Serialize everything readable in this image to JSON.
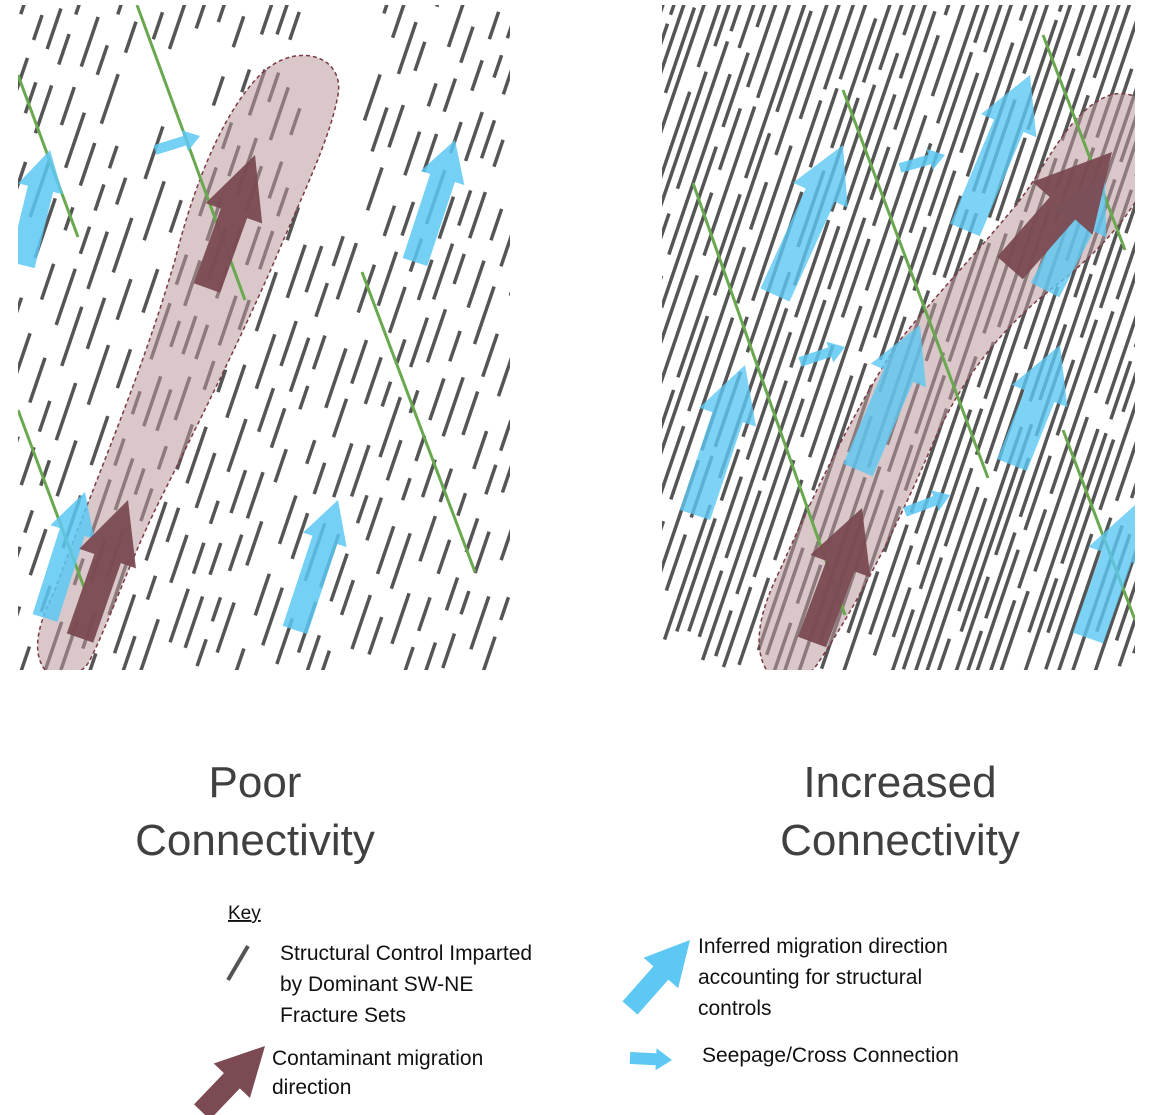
{
  "panels": [
    {
      "title_lines": [
        "Poor",
        "Connectivity"
      ]
    },
    {
      "title_lines": [
        "Increased",
        "Connectivity"
      ]
    }
  ],
  "key": {
    "title": "Key",
    "items": [
      {
        "label_lines": [
          "Structural Control Imparted",
          "by Dominant SW-NE",
          "Fracture Sets"
        ]
      },
      {
        "label_lines": [
          "Contaminant migration",
          "direction"
        ]
      },
      {
        "label_lines": [
          "Inferred migration direction",
          "accounting for structural",
          "controls"
        ]
      },
      {
        "label_lines": [
          "Seepage/Cross Connection"
        ]
      }
    ]
  }
}
